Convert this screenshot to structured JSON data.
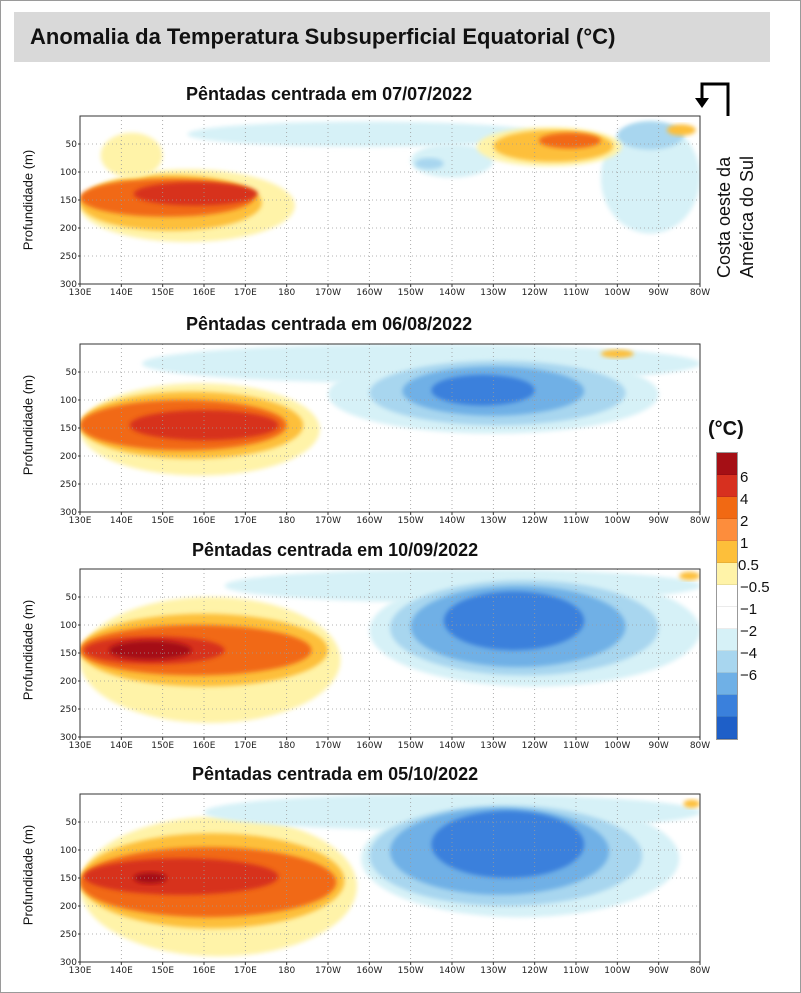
{
  "title": "Anomalia da Temperatura Subsuperficial Equatorial (°C)",
  "coast_label": [
    "Costa oeste da",
    "América do Sul"
  ],
  "legend": {
    "unit": "(°C)",
    "colors": [
      "#a50f15",
      "#d7301f",
      "#f16913",
      "#fd8d3c",
      "#fdbf3a",
      "#fff3a8",
      "#ffffff",
      "#ffffff",
      "#d6f1f7",
      "#a8d6ef",
      "#6fb0e6",
      "#3a80dc",
      "#1e5fc8"
    ],
    "labels": [
      "6",
      "4",
      "2",
      "1",
      "0.5",
      "−0.5",
      "−1",
      "−2",
      "−4",
      "−6"
    ]
  },
  "chart_data": [
    {
      "type": "heatmap",
      "title": "Pêntadas centrada em 07/07/2022",
      "ylabel": "Profundidade (m)",
      "x_ticks": [
        "130E",
        "140E",
        "150E",
        "160E",
        "170E",
        "180",
        "170W",
        "160W",
        "150W",
        "140W",
        "130W",
        "120W",
        "110W",
        "100W",
        "90W",
        "80W"
      ],
      "y_ticks": [
        "50",
        "100",
        "150",
        "200",
        "250",
        "300"
      ],
      "xlim": [
        130,
        280
      ],
      "ylim": [
        300,
        0
      ],
      "grid": true,
      "blobs": [
        {
          "lon": [
            130,
            182
          ],
          "depth": [
            95,
            225
          ],
          "level": 0.5
        },
        {
          "lon": [
            130,
            174
          ],
          "depth": [
            105,
            205
          ],
          "level": 1
        },
        {
          "lon": [
            130,
            172
          ],
          "depth": [
            112,
            180
          ],
          "level": 2
        },
        {
          "lon": [
            143,
            173
          ],
          "depth": [
            118,
            160
          ],
          "level": 4
        },
        {
          "lon": [
            135,
            150
          ],
          "depth": [
            30,
            110
          ],
          "level": 0.5
        },
        {
          "lon": [
            156,
            242
          ],
          "depth": [
            10,
            55
          ],
          "level": -0.5
        },
        {
          "lon": [
            210,
            230
          ],
          "depth": [
            50,
            110
          ],
          "level": -0.5
        },
        {
          "lon": [
            211,
            218
          ],
          "depth": [
            75,
            95
          ],
          "level": -1
        },
        {
          "lon": [
            256,
            280
          ],
          "depth": [
            10,
            210
          ],
          "level": -0.5
        },
        {
          "lon": [
            260,
            276
          ],
          "depth": [
            10,
            60
          ],
          "level": -1
        },
        {
          "lon": [
            226,
            261
          ],
          "depth": [
            20,
            90
          ],
          "level": 0.5
        },
        {
          "lon": [
            230,
            259
          ],
          "depth": [
            25,
            82
          ],
          "level": 1
        },
        {
          "lon": [
            241,
            256
          ],
          "depth": [
            30,
            58
          ],
          "level": 2
        },
        {
          "lon": [
            272,
            279
          ],
          "depth": [
            15,
            35
          ],
          "level": 1
        }
      ]
    },
    {
      "type": "heatmap",
      "title": "Pêntadas centrada em 06/08/2022",
      "ylabel": "Profundidade (m)",
      "x_ticks": [
        "130E",
        "140E",
        "150E",
        "160E",
        "170E",
        "180",
        "170W",
        "160W",
        "150W",
        "140W",
        "130W",
        "120W",
        "110W",
        "100W",
        "90W",
        "80W"
      ],
      "y_ticks": [
        "50",
        "100",
        "150",
        "200",
        "250",
        "300"
      ],
      "xlim": [
        130,
        280
      ],
      "ylim": [
        300,
        0
      ],
      "grid": true,
      "blobs": [
        {
          "lon": [
            130,
            188
          ],
          "depth": [
            70,
            235
          ],
          "level": 0.5
        },
        {
          "lon": [
            130,
            184
          ],
          "depth": [
            85,
            205
          ],
          "level": 1
        },
        {
          "lon": [
            130,
            180
          ],
          "depth": [
            100,
            190
          ],
          "level": 2
        },
        {
          "lon": [
            142,
            178
          ],
          "depth": [
            118,
            172
          ],
          "level": 4
        },
        {
          "lon": [
            145,
            280
          ],
          "depth": [
            0,
            70
          ],
          "level": -0.5
        },
        {
          "lon": [
            190,
            270
          ],
          "depth": [
            20,
            160
          ],
          "level": -0.5
        },
        {
          "lon": [
            200,
            262
          ],
          "depth": [
            30,
            145
          ],
          "level": -1
        },
        {
          "lon": [
            208,
            252
          ],
          "depth": [
            40,
            128
          ],
          "level": -2
        },
        {
          "lon": [
            215,
            240
          ],
          "depth": [
            55,
            110
          ],
          "level": -4
        },
        {
          "lon": [
            256,
            264
          ],
          "depth": [
            10,
            25
          ],
          "level": 1
        }
      ]
    },
    {
      "type": "heatmap",
      "title": "Pêntadas centrada em 10/09/2022",
      "ylabel": "Profundidade (m)",
      "x_ticks": [
        "130E",
        "140E",
        "150E",
        "160E",
        "170E",
        "180",
        "170W",
        "160W",
        "150W",
        "140W",
        "130W",
        "120W",
        "110W",
        "100W",
        "90W",
        "80W"
      ],
      "y_ticks": [
        "50",
        "100",
        "150",
        "200",
        "250",
        "300"
      ],
      "xlim": [
        130,
        280
      ],
      "ylim": [
        300,
        0
      ],
      "grid": true,
      "blobs": [
        {
          "lon": [
            130,
            193
          ],
          "depth": [
            50,
            275
          ],
          "level": 0.5
        },
        {
          "lon": [
            130,
            190
          ],
          "depth": [
            80,
            210
          ],
          "level": 1
        },
        {
          "lon": [
            130,
            186
          ],
          "depth": [
            100,
            190
          ],
          "level": 2
        },
        {
          "lon": [
            131,
            165
          ],
          "depth": [
            120,
            170
          ],
          "level": 4
        },
        {
          "lon": [
            137,
            157
          ],
          "depth": [
            128,
            162
          ],
          "level": 6
        },
        {
          "lon": [
            165,
            280
          ],
          "depth": [
            0,
            60
          ],
          "level": -0.5
        },
        {
          "lon": [
            200,
            280
          ],
          "depth": [
            10,
            210
          ],
          "level": -0.5
        },
        {
          "lon": [
            205,
            270
          ],
          "depth": [
            20,
            190
          ],
          "level": -1
        },
        {
          "lon": [
            210,
            262
          ],
          "depth": [
            30,
            175
          ],
          "level": -2
        },
        {
          "lon": [
            218,
            252
          ],
          "depth": [
            40,
            145
          ],
          "level": -4
        },
        {
          "lon": [
            275,
            280
          ],
          "depth": [
            5,
            20
          ],
          "level": 1
        }
      ]
    },
    {
      "type": "heatmap",
      "title": "Pêntadas centrada em 05/10/2022",
      "ylabel": "Profundidade (m)",
      "x_ticks": [
        "130E",
        "140E",
        "150E",
        "160E",
        "170E",
        "180",
        "170W",
        "160W",
        "150W",
        "140W",
        "130W",
        "120W",
        "110W",
        "100W",
        "90W",
        "80W"
      ],
      "y_ticks": [
        "50",
        "100",
        "150",
        "200",
        "250",
        "300"
      ],
      "xlim": [
        130,
        280
      ],
      "ylim": [
        300,
        0
      ],
      "grid": true,
      "blobs": [
        {
          "lon": [
            130,
            197
          ],
          "depth": [
            40,
            290
          ],
          "level": 0.5
        },
        {
          "lon": [
            130,
            194
          ],
          "depth": [
            70,
            240
          ],
          "level": 1
        },
        {
          "lon": [
            130,
            192
          ],
          "depth": [
            95,
            220
          ],
          "level": 2
        },
        {
          "lon": [
            131,
            178
          ],
          "depth": [
            115,
            180
          ],
          "level": 4
        },
        {
          "lon": [
            143,
            151
          ],
          "depth": [
            140,
            160
          ],
          "level": 6
        },
        {
          "lon": [
            160,
            280
          ],
          "depth": [
            0,
            65
          ],
          "level": -0.5
        },
        {
          "lon": [
            198,
            275
          ],
          "depth": [
            10,
            220
          ],
          "level": -0.5
        },
        {
          "lon": [
            200,
            266
          ],
          "depth": [
            20,
            200
          ],
          "level": -1
        },
        {
          "lon": [
            205,
            258
          ],
          "depth": [
            25,
            180
          ],
          "level": -2
        },
        {
          "lon": [
            215,
            252
          ],
          "depth": [
            30,
            150
          ],
          "level": -4
        },
        {
          "lon": [
            276,
            280
          ],
          "depth": [
            10,
            25
          ],
          "level": 1
        }
      ]
    }
  ]
}
